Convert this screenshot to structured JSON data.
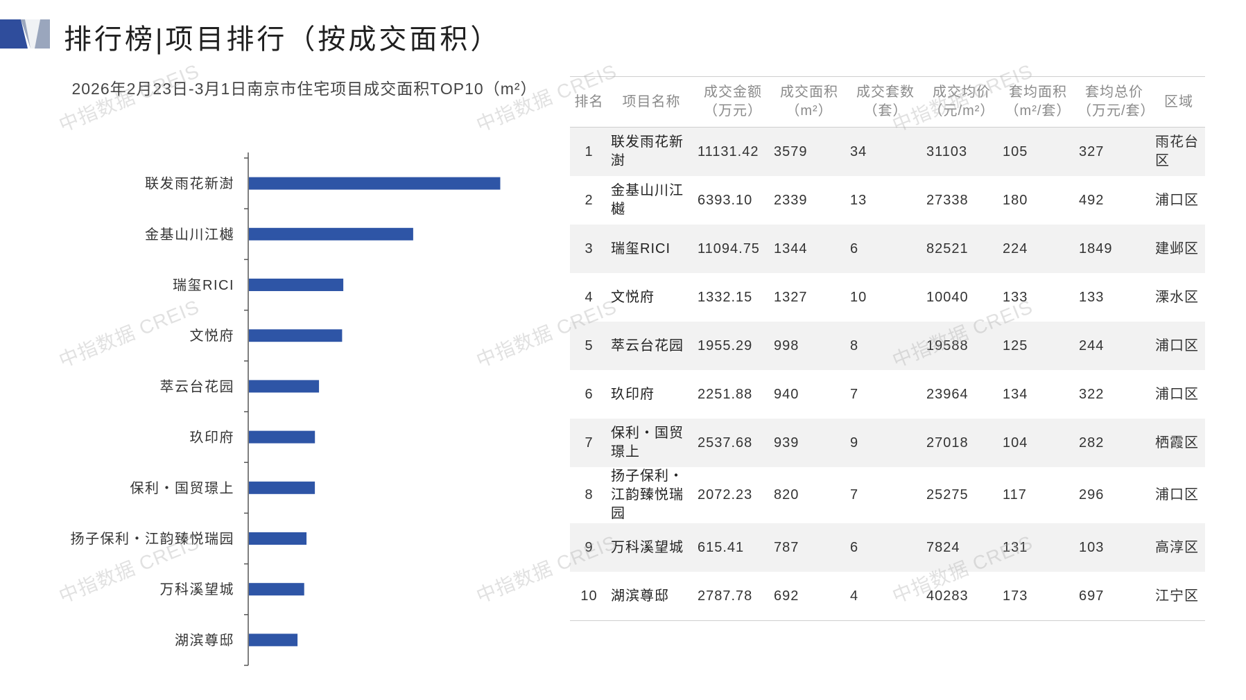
{
  "page": {
    "title": "排行榜|项目排行（按成交面积）",
    "watermark": "中指数据 CREIS"
  },
  "colors": {
    "bar": "#2e55a6",
    "logo_dark": "#2f4d9c",
    "logo_light": "#9aa6bd",
    "row_stripe": "#f2f2f2"
  },
  "chart_data": {
    "type": "bar",
    "orientation": "horizontal",
    "title": "2026年2月23日-3月1日南京市住宅项目成交面积TOP10（m²）",
    "categories": [
      "联发雨花新澍",
      "金基山川江樾",
      "瑞玺RICI",
      "文悦府",
      "萃云台花园",
      "玖印府",
      "保利・国贸璟上",
      "扬子保利・江韵臻悦瑞园",
      "万科溪望城",
      "湖滨尊邸"
    ],
    "values": [
      3579,
      2339,
      1344,
      1327,
      998,
      940,
      939,
      820,
      787,
      692
    ],
    "xlim": [
      0,
      3900
    ],
    "grid": false,
    "legend": "none"
  },
  "table": {
    "headers": [
      [
        "排名",
        ""
      ],
      [
        "项目名称",
        ""
      ],
      [
        "成交金额",
        "（万元）"
      ],
      [
        "成交面积",
        "（m²）"
      ],
      [
        "成交套数",
        "（套）"
      ],
      [
        "成交均价",
        "（元/m²）"
      ],
      [
        "套均面积",
        "（m²/套）"
      ],
      [
        "套均总价",
        "（万元/套）"
      ],
      [
        "区域",
        ""
      ]
    ],
    "rows": [
      [
        "1",
        "联发雨花新澍",
        "11131.42",
        "3579",
        "34",
        "31103",
        "105",
        "327",
        "雨花台区"
      ],
      [
        "2",
        "金基山川江樾",
        "6393.10",
        "2339",
        "13",
        "27338",
        "180",
        "492",
        "浦口区"
      ],
      [
        "3",
        "瑞玺RICI",
        "11094.75",
        "1344",
        "6",
        "82521",
        "224",
        "1849",
        "建邺区"
      ],
      [
        "4",
        "文悦府",
        "1332.15",
        "1327",
        "10",
        "10040",
        "133",
        "133",
        "溧水区"
      ],
      [
        "5",
        "萃云台花园",
        "1955.29",
        "998",
        "8",
        "19588",
        "125",
        "244",
        "浦口区"
      ],
      [
        "6",
        "玖印府",
        "2251.88",
        "940",
        "7",
        "23964",
        "134",
        "322",
        "浦口区"
      ],
      [
        "7",
        "保利・国贸璟上",
        "2537.68",
        "939",
        "9",
        "27018",
        "104",
        "282",
        "栖霞区"
      ],
      [
        "8",
        "扬子保利・江韵臻悦瑞园",
        "2072.23",
        "820",
        "7",
        "25275",
        "117",
        "296",
        "浦口区"
      ],
      [
        "9",
        "万科溪望城",
        "615.41",
        "787",
        "6",
        "7824",
        "131",
        "103",
        "高淳区"
      ],
      [
        "10",
        "湖滨尊邸",
        "2787.78",
        "692",
        "4",
        "40283",
        "173",
        "697",
        "江宁区"
      ]
    ]
  }
}
